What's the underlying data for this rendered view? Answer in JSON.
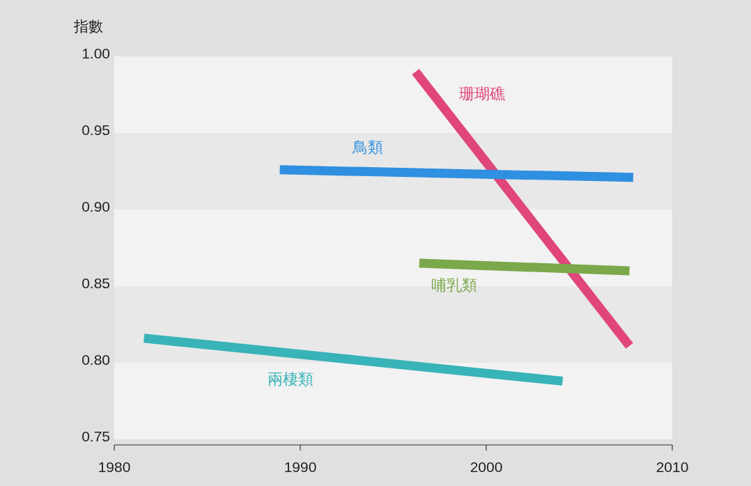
{
  "chart_data": {
    "type": "line",
    "ylabel": "指數",
    "xlim": [
      1980,
      2010
    ],
    "xticks": [
      1980,
      1990,
      2000,
      2010
    ],
    "ylim": [
      0.75,
      1.0
    ],
    "yticks": [
      {
        "value": 0.75,
        "label": "0.75"
      },
      {
        "value": 0.8,
        "label": "0.80"
      },
      {
        "value": 0.85,
        "label": "0.85"
      },
      {
        "value": 0.9,
        "label": "0.90"
      },
      {
        "value": 0.95,
        "label": "0.95"
      },
      {
        "value": 1.0,
        "label": "1.00"
      }
    ],
    "legend": false,
    "marker": "none",
    "line_style": "solid",
    "series": [
      {
        "name": "珊瑚礁",
        "color": "#e0457b",
        "x": [
          1996.2,
          2007.7
        ],
        "values": [
          0.99,
          0.811
        ]
      },
      {
        "name": "鳥類",
        "color": "#2f8fe0",
        "x": [
          1988.9,
          2007.9
        ],
        "values": [
          0.926,
          0.921
        ]
      },
      {
        "name": "哺乳類",
        "color": "#7ba84a",
        "x": [
          1996.4,
          2007.7
        ],
        "values": [
          0.865,
          0.86
        ]
      },
      {
        "name": "兩棲類",
        "color": "#38b3b8",
        "x": [
          1981.6,
          2004.1
        ],
        "values": [
          0.816,
          0.788
        ]
      }
    ]
  }
}
